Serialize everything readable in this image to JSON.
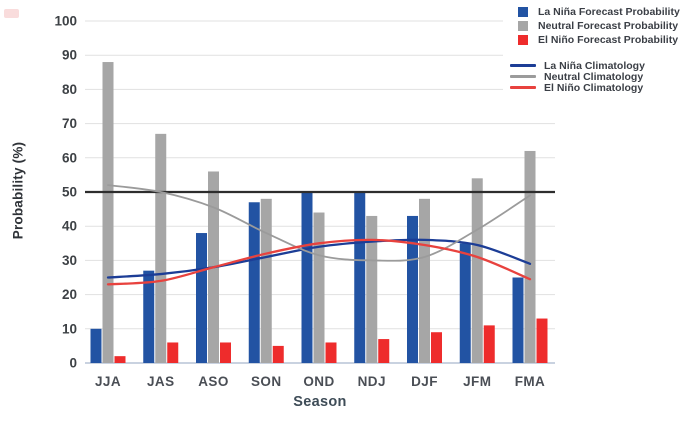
{
  "chart_data": {
    "type": "bar",
    "title": "",
    "categories": [
      "JJA",
      "JAS",
      "ASO",
      "SON",
      "OND",
      "NDJ",
      "DJF",
      "JFM",
      "FMA"
    ],
    "series": [
      {
        "name": "La Niña Forecast Probability",
        "type": "bar",
        "color": "#2253a3",
        "values": [
          10,
          27,
          38,
          47,
          50,
          50,
          43,
          35,
          25
        ]
      },
      {
        "name": "Neutral Forecast Probability",
        "type": "bar",
        "color": "#a6a6a6",
        "values": [
          88,
          67,
          56,
          48,
          44,
          43,
          48,
          54,
          62
        ]
      },
      {
        "name": "El Niño Forecast Probability",
        "type": "bar",
        "color": "#ee2c2c",
        "values": [
          2,
          6,
          6,
          5,
          6,
          7,
          9,
          11,
          13
        ]
      },
      {
        "name": "La Niña Climatology",
        "type": "line",
        "color": "#1c3d96",
        "values": [
          25,
          26,
          28,
          31,
          34,
          35.5,
          36,
          34.5,
          29
        ]
      },
      {
        "name": "Neutral Climatology",
        "type": "line",
        "color": "#9b9b9b",
        "values": [
          52,
          50,
          45.5,
          38,
          31.5,
          30,
          31,
          39,
          49
        ]
      },
      {
        "name": "El Niño Climatology",
        "type": "line",
        "color": "#e8423e",
        "values": [
          23,
          24,
          28,
          32,
          35,
          36,
          34.5,
          31,
          24.5
        ]
      }
    ],
    "xlabel": "Season",
    "ylabel": "Probability (%)",
    "ylim": [
      0,
      100
    ],
    "yticks": [
      0,
      10,
      20,
      30,
      40,
      50,
      60,
      70,
      80,
      90,
      100
    ],
    "reference_line": 50,
    "grid": true,
    "legend_position": "top-right"
  },
  "colors": {
    "gridline": "#e1e1e1",
    "reference_line": "#2d2d2d",
    "baseline": "#b7c3d6",
    "tick_label": "#3d4145",
    "category_label": "#4a4e55"
  }
}
